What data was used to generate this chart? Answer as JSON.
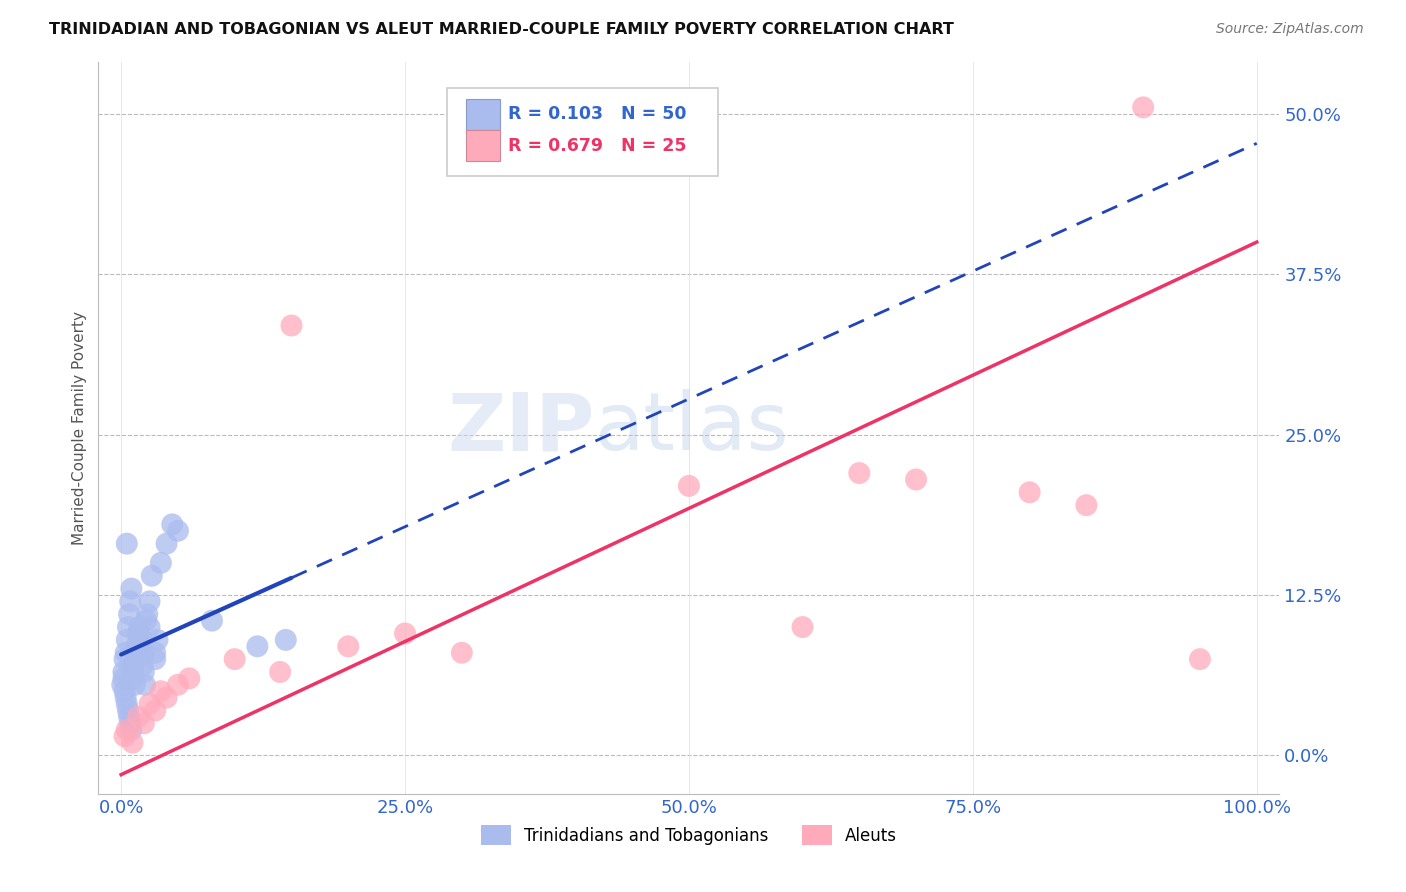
{
  "title": "TRINIDADIAN AND TOBAGONIAN VS ALEUT MARRIED-COUPLE FAMILY POVERTY CORRELATION CHART",
  "source": "Source: ZipAtlas.com",
  "ylabel": "Married-Couple Family Poverty",
  "watermark_zip": "ZIP",
  "watermark_atlas": "atlas",
  "xlim": [
    -2,
    102
  ],
  "ylim": [
    -3,
    54
  ],
  "xticks": [
    0,
    25,
    50,
    75,
    100
  ],
  "xticklabels": [
    "0.0%",
    "25.0%",
    "50.0%",
    "75.0%",
    "100.0%"
  ],
  "yticks": [
    0,
    12.5,
    25,
    37.5,
    50
  ],
  "yticklabels": [
    "0.0%",
    "12.5%",
    "25.0%",
    "37.5%",
    "50.0%"
  ],
  "grid_color": "#bbbbbb",
  "background_color": "#ffffff",
  "trinidadian_color": "#aabbee",
  "aleut_color": "#ffaabb",
  "trin_line_color": "#2244bb",
  "aleut_line_color": "#ee3366",
  "legend_label_trin": "Trinidadians and Tobagonians",
  "legend_label_aleut": "Aleuts",
  "trin_scatter_x": [
    0.2,
    0.3,
    0.4,
    0.5,
    0.6,
    0.7,
    0.8,
    0.9,
    1.0,
    1.1,
    1.2,
    1.3,
    1.4,
    1.5,
    1.6,
    1.7,
    1.8,
    1.9,
    2.0,
    2.1,
    2.2,
    2.3,
    2.5,
    2.7,
    3.0,
    3.2,
    3.5,
    4.0,
    4.5,
    5.0,
    0.1,
    0.2,
    0.3,
    0.4,
    0.5,
    0.6,
    0.7,
    0.8,
    0.9,
    1.0,
    1.1,
    1.3,
    1.5,
    2.0,
    2.5,
    3.0,
    8.0,
    12.0,
    14.5,
    0.5
  ],
  "trin_scatter_y": [
    6.5,
    5.0,
    4.5,
    4.0,
    3.5,
    3.0,
    2.5,
    2.0,
    7.0,
    6.0,
    5.5,
    7.5,
    8.0,
    9.5,
    10.0,
    8.5,
    9.0,
    7.0,
    6.5,
    5.5,
    10.5,
    11.0,
    12.0,
    14.0,
    7.5,
    9.0,
    15.0,
    16.5,
    18.0,
    17.5,
    5.5,
    6.0,
    7.5,
    8.0,
    9.0,
    10.0,
    11.0,
    12.0,
    13.0,
    6.5,
    7.0,
    8.5,
    9.5,
    8.0,
    10.0,
    8.0,
    10.5,
    8.5,
    9.0,
    16.5
  ],
  "aleut_scatter_x": [
    0.3,
    0.5,
    1.0,
    1.5,
    2.0,
    2.5,
    3.0,
    3.5,
    4.0,
    5.0,
    6.0,
    10.0,
    15.0,
    20.0,
    25.0,
    30.0,
    50.0,
    60.0,
    65.0,
    70.0,
    80.0,
    85.0,
    90.0,
    95.0,
    14.0
  ],
  "aleut_scatter_y": [
    1.5,
    2.0,
    1.0,
    3.0,
    2.5,
    4.0,
    3.5,
    5.0,
    4.5,
    5.5,
    6.0,
    7.5,
    33.5,
    8.5,
    9.5,
    8.0,
    21.0,
    10.0,
    22.0,
    21.5,
    20.5,
    19.5,
    50.5,
    7.5,
    6.5
  ],
  "trin_solid_xmax": 15,
  "aleut_line_x": [
    0,
    100
  ],
  "aleut_line_y_at0": -1.5,
  "aleut_line_y_at100": 40.0
}
